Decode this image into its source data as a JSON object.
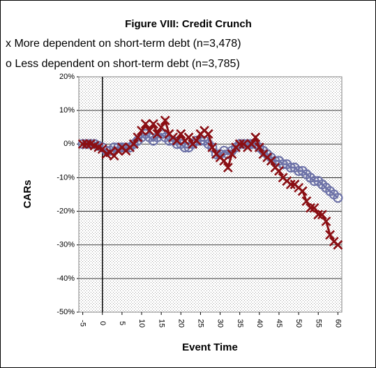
{
  "chart_data": {
    "type": "line",
    "title": "Figure VIII: Credit Crunch",
    "x_label": "Event Time",
    "y_label": "CARs",
    "x": [
      -5,
      -4,
      -3,
      -2,
      -1,
      0,
      1,
      2,
      3,
      4,
      5,
      6,
      7,
      8,
      9,
      10,
      11,
      12,
      13,
      14,
      15,
      16,
      17,
      18,
      19,
      20,
      21,
      22,
      23,
      24,
      25,
      26,
      27,
      28,
      29,
      30,
      31,
      32,
      33,
      34,
      35,
      36,
      37,
      38,
      39,
      40,
      41,
      42,
      43,
      44,
      45,
      46,
      47,
      48,
      49,
      50,
      51,
      52,
      53,
      54,
      55,
      56,
      57,
      58,
      59,
      60
    ],
    "series": [
      {
        "name": "x More dependent on short-term debt (n=3,478)",
        "color": "#8b0f14",
        "marker": "x",
        "values": [
          0,
          0,
          0,
          -0.5,
          -1,
          -1.5,
          -3,
          -2.5,
          -3.5,
          -2,
          -1,
          -2,
          -1,
          0,
          2,
          4,
          6,
          4,
          6,
          3,
          5,
          7,
          3,
          2,
          1,
          3,
          1,
          2,
          0,
          1,
          3,
          4,
          3,
          -1,
          -3,
          -4,
          -5,
          -7,
          -3,
          -1,
          0,
          0,
          -1,
          0,
          2,
          -1,
          -3,
          -4,
          -5,
          -7,
          -8,
          -10,
          -11,
          -12,
          -12,
          -13,
          -14,
          -17,
          -19,
          -19,
          -21,
          -21,
          -23,
          -27,
          -29,
          -30
        ]
      },
      {
        "name": "o Less dependent on short-term debt (n=3,785)",
        "color": "#6e73a8",
        "marker": "o",
        "values": [
          0,
          0,
          0,
          0,
          -0.5,
          -1,
          -2,
          -2,
          -1,
          -1,
          -1,
          -1,
          -1,
          0,
          1,
          2,
          3,
          2,
          1,
          2,
          3,
          2,
          1,
          1,
          0,
          0,
          -1,
          -1,
          0,
          1,
          1,
          1,
          0,
          -1,
          -3,
          -3,
          -2,
          -3,
          -2,
          -1,
          0,
          0,
          0,
          0,
          0,
          -1,
          -2,
          -3,
          -4,
          -5,
          -5,
          -6,
          -6,
          -7,
          -7,
          -8,
          -8,
          -9,
          -10,
          -11,
          -11,
          -12,
          -13,
          -14,
          -15,
          -16
        ]
      }
    ],
    "xlim": [
      -6,
      61
    ],
    "xticks": [
      -5,
      0,
      5,
      10,
      15,
      20,
      25,
      30,
      35,
      40,
      45,
      50,
      55,
      60
    ],
    "ylim": [
      -50,
      20
    ],
    "yticks": [
      {
        "value": -50,
        "label": "-50%"
      },
      {
        "value": -40,
        "label": "-40%"
      },
      {
        "value": -30,
        "label": "-30%"
      },
      {
        "value": -20,
        "label": "-20%"
      },
      {
        "value": -10,
        "label": "-10%"
      },
      {
        "value": 0,
        "label": "0%"
      },
      {
        "value": 10,
        "label": "10%"
      },
      {
        "value": 20,
        "label": "20%"
      }
    ],
    "grid": true
  }
}
